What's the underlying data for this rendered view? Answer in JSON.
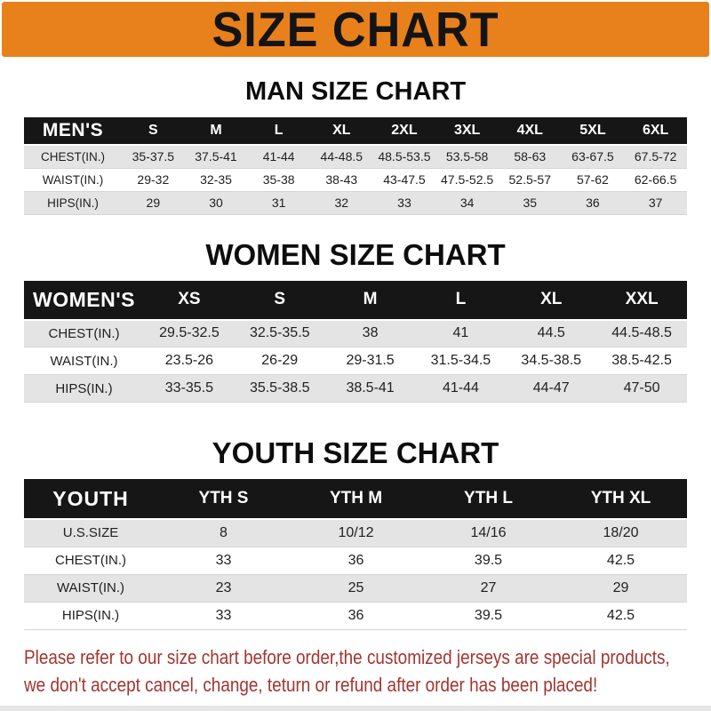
{
  "banner": {
    "title": "SIZE CHART",
    "bg_color": "#E8811C",
    "text_color": "#141414"
  },
  "colors": {
    "table_header_bg": "#161616",
    "table_header_text": "#FFFFFF",
    "row_stripe": "#E4E4E4",
    "disclaimer_red": "#A33530"
  },
  "chart_data": [
    {
      "type": "table",
      "title": "MAN SIZE CHART",
      "header_label": "MEN'S",
      "columns": [
        "S",
        "M",
        "L",
        "XL",
        "2XL",
        "3XL",
        "4XL",
        "5XL",
        "6XL"
      ],
      "rows": [
        {
          "label": "CHEST(IN.)",
          "values": [
            "35-37.5",
            "37.5-41",
            "41-44",
            "44-48.5",
            "48.5-53.5",
            "53.5-58",
            "58-63",
            "63-67.5",
            "67.5-72"
          ]
        },
        {
          "label": "WAIST(IN.)",
          "values": [
            "29-32",
            "32-35",
            "35-38",
            "38-43",
            "43-47.5",
            "47.5-52.5",
            "52.5-57",
            "57-62",
            "62-66.5"
          ]
        },
        {
          "label": "HIPS(IN.)",
          "values": [
            "29",
            "30",
            "31",
            "32",
            "33",
            "34",
            "35",
            "36",
            "37"
          ]
        }
      ]
    },
    {
      "type": "table",
      "title": "WOMEN SIZE CHART",
      "header_label": "WOMEN'S",
      "columns": [
        "XS",
        "S",
        "M",
        "L",
        "XL",
        "XXL"
      ],
      "rows": [
        {
          "label": "CHEST(IN.)",
          "values": [
            "29.5-32.5",
            "32.5-35.5",
            "38",
            "41",
            "44.5",
            "44.5-48.5"
          ]
        },
        {
          "label": "WAIST(IN.)",
          "values": [
            "23.5-26",
            "26-29",
            "29-31.5",
            "31.5-34.5",
            "34.5-38.5",
            "38.5-42.5"
          ]
        },
        {
          "label": "HIPS(IN.)",
          "values": [
            "33-35.5",
            "35.5-38.5",
            "38.5-41",
            "41-44",
            "44-47",
            "47-50"
          ]
        }
      ]
    },
    {
      "type": "table",
      "title": "YOUTH SIZE CHART",
      "header_label": "YOUTH",
      "columns": [
        "YTH S",
        "YTH M",
        "YTH L",
        "YTH XL"
      ],
      "rows": [
        {
          "label": "U.S.SIZE",
          "values": [
            "8",
            "10/12",
            "14/16",
            "18/20"
          ]
        },
        {
          "label": "CHEST(IN.)",
          "values": [
            "33",
            "36",
            "39.5",
            "42.5"
          ]
        },
        {
          "label": "WAIST(IN.)",
          "values": [
            "23",
            "25",
            "27",
            "29"
          ]
        },
        {
          "label": "HIPS(IN.)",
          "values": [
            "33",
            "36",
            "39.5",
            "42.5"
          ]
        }
      ]
    }
  ],
  "disclaimer": {
    "line1": "Please refer to our size chart before order,the customized jerseys are special products,",
    "line2": "we don't accept cancel, change, teturn or refund after order has been placed!"
  }
}
